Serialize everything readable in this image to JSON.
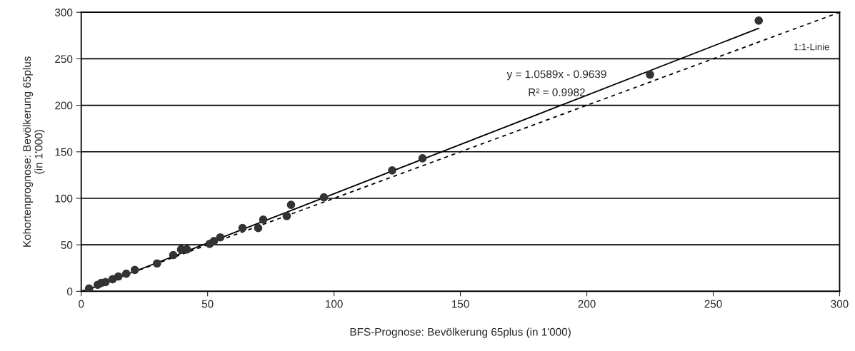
{
  "chart_data": {
    "type": "scatter",
    "xlabel": "BFS-Prognose: Bevölkerung 65plus (in 1'000)",
    "ylabel": "Kohortenprognose: Bevölkerung 65plus\n(in 1'000)",
    "xlim": [
      0,
      300
    ],
    "ylim": [
      0,
      300
    ],
    "xticks": [
      0,
      50,
      100,
      150,
      200,
      250,
      300
    ],
    "yticks": [
      0,
      50,
      100,
      150,
      200,
      250,
      300
    ],
    "grid": "y",
    "series": [
      {
        "marker": "circle",
        "color": "#333333",
        "x": [
          3.1,
          6.5,
          7.9,
          9.6,
          12.4,
          14.7,
          17.8,
          21.2,
          30,
          36.4,
          39.5,
          41.8,
          50.8,
          52.5,
          55,
          63.8,
          70,
          72,
          81.3,
          83,
          96,
          123,
          135,
          225,
          268
        ],
        "values": [
          3,
          7,
          9,
          10,
          13,
          16,
          19,
          23,
          30,
          39,
          45,
          45,
          51,
          54,
          58,
          68,
          68,
          77,
          81,
          93,
          101,
          130,
          143,
          233,
          291
        ]
      },
      {
        "type": "line",
        "marker": "none",
        "color": "#000000",
        "line_style": "solid",
        "x": [
          3.1,
          268
        ],
        "values": [
          2.3,
          282.8
        ]
      },
      {
        "type": "line",
        "marker": "none",
        "color": "#000000",
        "line_style": "dashed",
        "x": [
          0,
          300
        ],
        "values": [
          0,
          300
        ]
      }
    ],
    "annotations": [
      "y = 1.0589x - 0.9639",
      "R² = 0.9982",
      "1:1-Linie"
    ]
  }
}
